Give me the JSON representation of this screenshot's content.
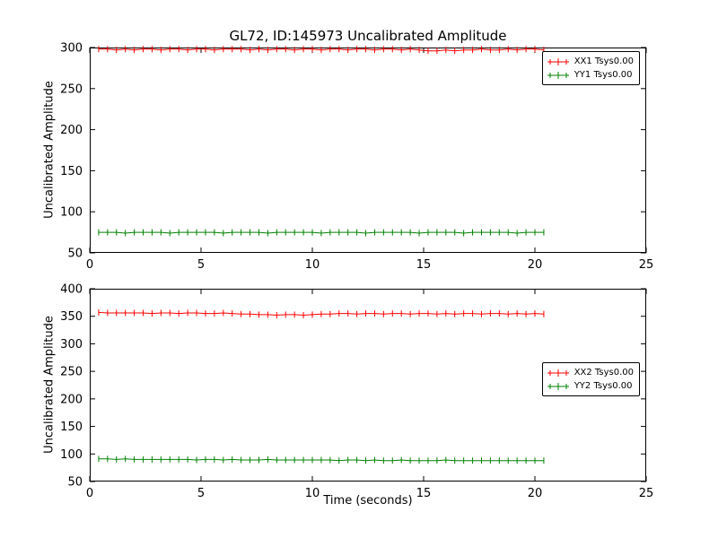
{
  "chart": {
    "title": "GL72, ID:145973 Uncalibrated Amplitude",
    "xlabel": "Time (seconds)",
    "ylabel": "Uncalibrated Amplitude"
  },
  "chart_data": [
    {
      "type": "line",
      "ylabel": "Uncalibrated Amplitude",
      "xlim": [
        0,
        25
      ],
      "ylim": [
        50,
        300
      ],
      "xticks": [
        0,
        5,
        10,
        15,
        20,
        25
      ],
      "yticks": [
        50,
        100,
        150,
        200,
        250,
        300
      ],
      "grid": false,
      "marker": "plus-errorbar",
      "legend_position": "upper right",
      "x": {
        "start": 0.4,
        "step": 0.4
      },
      "series": [
        {
          "name": "XX1 Tsys0.00",
          "color": "#ff0000",
          "values": [
            298,
            298,
            297,
            298,
            297,
            298,
            298,
            297,
            298,
            298,
            297,
            298,
            298,
            297,
            298,
            298,
            298,
            297,
            298,
            297,
            298,
            298,
            297,
            298,
            298,
            297,
            298,
            298,
            297,
            298,
            298,
            297,
            298,
            298,
            297,
            298,
            297,
            296,
            296,
            297,
            296,
            297,
            297,
            298,
            297,
            297,
            298,
            297,
            298,
            298,
            297
          ]
        },
        {
          "name": "YY1 Tsys0.00",
          "color": "#008000",
          "values": [
            75,
            75,
            75,
            74,
            75,
            75,
            75,
            75,
            74,
            75,
            75,
            75,
            75,
            75,
            74,
            75,
            75,
            75,
            75,
            74,
            75,
            75,
            75,
            75,
            75,
            74,
            75,
            75,
            75,
            75,
            74,
            75,
            75,
            75,
            75,
            75,
            74,
            75,
            75,
            75,
            75,
            74,
            75,
            75,
            75,
            75,
            75,
            74,
            75,
            75,
            75
          ]
        }
      ]
    },
    {
      "type": "line",
      "ylabel": "Uncalibrated Amplitude",
      "xlabel": "Time (seconds)",
      "xlim": [
        0,
        25
      ],
      "ylim": [
        50,
        400
      ],
      "xticks": [
        0,
        5,
        10,
        15,
        20,
        25
      ],
      "yticks": [
        50,
        100,
        150,
        200,
        250,
        300,
        350,
        400
      ],
      "grid": false,
      "marker": "plus-errorbar",
      "legend_position": "center right",
      "x": {
        "start": 0.4,
        "step": 0.4
      },
      "series": [
        {
          "name": "XX2 Tsys0.00",
          "color": "#ff0000",
          "values": [
            357,
            356,
            356,
            356,
            356,
            356,
            355,
            356,
            356,
            355,
            356,
            356,
            355,
            355,
            356,
            355,
            354,
            354,
            353,
            353,
            352,
            353,
            353,
            352,
            353,
            354,
            354,
            355,
            355,
            354,
            355,
            355,
            354,
            355,
            355,
            354,
            355,
            355,
            354,
            355,
            354,
            355,
            355,
            354,
            355,
            355,
            354,
            355,
            354,
            355,
            354
          ]
        },
        {
          "name": "YY2 Tsys0.00",
          "color": "#008000",
          "values": [
            91,
            91,
            90,
            91,
            90,
            90,
            90,
            90,
            90,
            90,
            90,
            89,
            90,
            90,
            89,
            90,
            89,
            89,
            89,
            90,
            89,
            89,
            89,
            89,
            89,
            89,
            89,
            88,
            89,
            89,
            88,
            89,
            88,
            88,
            89,
            88,
            88,
            88,
            88,
            89,
            88,
            88,
            88,
            88,
            88,
            88,
            88,
            88,
            88,
            88,
            88
          ]
        }
      ]
    }
  ]
}
